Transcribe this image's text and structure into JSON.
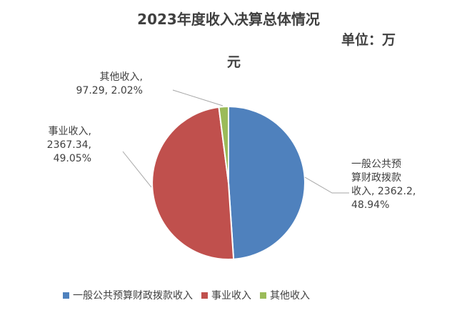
{
  "chart_data": {
    "type": "pie",
    "title": "2023年度收入决算总体情况",
    "unit_line1": "单位：万",
    "unit_line2": "元",
    "slices": [
      {
        "name": "一般公共预算财政拨款收入",
        "value": 2362.2,
        "percent": "48.94%",
        "color": "#4f81bd",
        "label_lines": [
          "一般公共预",
          "算财政拨款",
          "收入, 2362.2,",
          "48.94%"
        ]
      },
      {
        "name": "事业收入",
        "value": 2367.34,
        "percent": "49.05%",
        "color": "#c0504d",
        "label_lines": [
          "事业收入,",
          "2367.34,",
          "49.05%"
        ]
      },
      {
        "name": "其他收入",
        "value": 97.29,
        "percent": "2.02%",
        "color": "#9bbb59",
        "label_lines": [
          "其他收入,",
          "97.29, 2.02%"
        ]
      }
    ],
    "legend_placement": "bottom"
  }
}
